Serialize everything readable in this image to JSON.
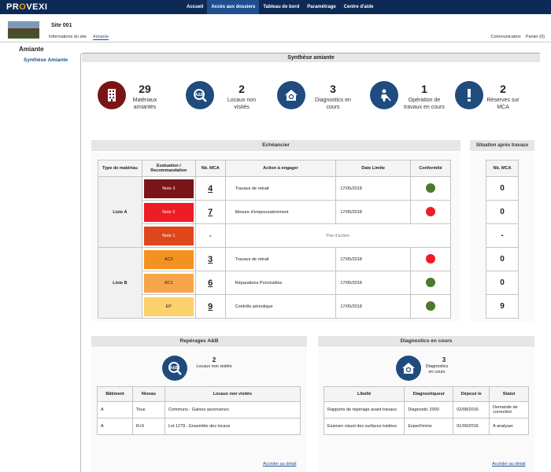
{
  "app": {
    "logo_pre": "PR",
    "logo_o": "O",
    "logo_post": "VEXI"
  },
  "nav": [
    "Accueil",
    "Accès aux dossiers",
    "Tableau de bord",
    "Paramétrage",
    "Centre d'aide"
  ],
  "site": {
    "name": "Site 001",
    "tabs": [
      "Informations du site",
      "Amiante"
    ]
  },
  "toplinks": "Communication    Panier (0)",
  "page_title": "Amiante",
  "sidenav": "Synthèse Amiante",
  "synth_title": "Synthèse amiante",
  "kpis": [
    {
      "num": "29",
      "label": "Matériaux amiantés",
      "color": "#7a1517",
      "icon": "building-icon"
    },
    {
      "num": "2",
      "label": "Locaux non visités",
      "color": "#1f4b7e",
      "icon": "ab-search-icon"
    },
    {
      "num": "3",
      "label": "Diagnostics en cours",
      "color": "#1f4b7e",
      "icon": "house-stethoscope-icon"
    },
    {
      "num": "1",
      "label": "Opération de travaux en cours",
      "color": "#1f4b7e",
      "icon": "worker-icon"
    },
    {
      "num": "2",
      "label": "Réserves sur MCA",
      "color": "#1f4b7e",
      "icon": "exclamation-icon"
    }
  ],
  "echeancier": {
    "title": "Echéancier",
    "headers": [
      "Type de matériau",
      "Evaluation / Recommandation",
      "Nb. MCA",
      "Action à engager",
      "Date Limite",
      "Conformité"
    ],
    "groups": [
      "Liste A",
      "Liste B"
    ],
    "rows": [
      {
        "eval": "Note 3",
        "eval_color": "#7a1517",
        "mca": "4",
        "action": "Travaux de retrait",
        "date": "17/05/2018",
        "conf": "#4a7a2a"
      },
      {
        "eval": "Note 2",
        "eval_color": "#ee1c25",
        "mca": "7",
        "action": "Mesure d'empoussièrement",
        "date": "17/05/2018",
        "conf": "#ee1c25"
      },
      {
        "eval": "Note 1",
        "eval_color": "#e0461a",
        "mca": "-",
        "action": "Pas d'action",
        "date": "",
        "conf": ""
      },
      {
        "eval": "AC2",
        "eval_color": "#f39221",
        "mca": "3",
        "action": "Travaux de retrait",
        "date": "17/05/2018",
        "conf": "#ee1c25"
      },
      {
        "eval": "AC1",
        "eval_color": "#f7a54a",
        "mca": "6",
        "action": "Réparations Ponctuelles",
        "date": "17/05/2018",
        "conf": "#4a7a2a"
      },
      {
        "eval": "EP",
        "eval_color": "#fcd06a",
        "mca": "9",
        "action": "Contrôle périodique",
        "date": "17/05/2018",
        "conf": "#4a7a2a"
      }
    ]
  },
  "situation": {
    "title": "Situation après travaux",
    "header": "Nb. MCA",
    "values": [
      "0",
      "0",
      "-",
      "0",
      "0",
      "9"
    ]
  },
  "reperages": {
    "title": "Repérages A&B",
    "num": "2",
    "label": "Locaux non visités",
    "headers": [
      "Bâtiment",
      "Niveau",
      "Locaux non visités"
    ],
    "rows": [
      [
        "A",
        "Tous",
        "Communs - Gaines ascenseurs"
      ],
      [
        "A",
        "R+5",
        "Lot 1279 - Ensemble des locaux"
      ]
    ],
    "link": "Accéder au détail"
  },
  "diagnostics": {
    "title": "Diagnostics en cours",
    "num": "3",
    "label": "Diagnostics en cours",
    "headers": [
      "Libellé",
      "Diagnostiqueur",
      "Déposé le",
      "Statut"
    ],
    "rows": [
      [
        "Rapports de repérage avant travaux",
        "Diagnostic 2000",
        "02/08/2016",
        "Demande de correction"
      ],
      [
        "Examen visuel des surfaces traitées",
        "Expert'immo",
        "01/09/2016",
        "A analyser"
      ]
    ],
    "link": "Accéder au détail"
  }
}
